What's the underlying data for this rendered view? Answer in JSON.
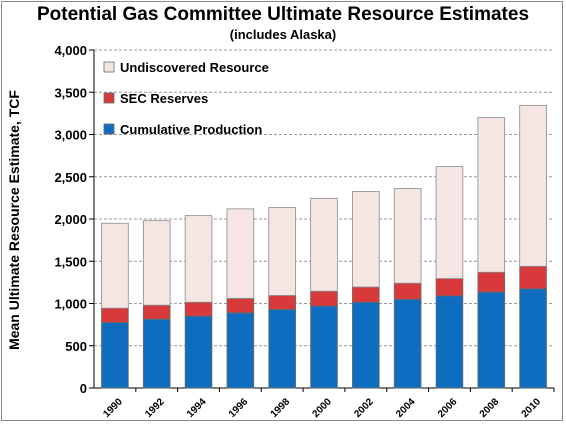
{
  "chart_data": {
    "type": "bar",
    "stacked": true,
    "title": "Potential Gas Committee Ultimate Resource Estimates",
    "subtitle": "(includes Alaska)",
    "xlabel": "",
    "ylabel": "Mean Ultimate Resource Estimate, TCF",
    "categories": [
      "1990",
      "1992",
      "1994",
      "1996",
      "1998",
      "2000",
      "2002",
      "2004",
      "2006",
      "2008",
      "2010"
    ],
    "ylim": [
      0,
      4000
    ],
    "yticks": [
      0,
      500,
      1000,
      1500,
      2000,
      2500,
      3000,
      3500,
      4000
    ],
    "ytick_labels": [
      "0",
      "500",
      "1,000",
      "1,500",
      "2,000",
      "2,500",
      "3,000",
      "3,500",
      "4,000"
    ],
    "grid": true,
    "legend_position": "top-left",
    "series": [
      {
        "name": "Cumulative Production",
        "color": "#0f6dc0",
        "values": [
          775,
          815,
          850,
          890,
          930,
          970,
          1015,
          1050,
          1090,
          1135,
          1175
        ]
      },
      {
        "name": "SEC Reserves",
        "color": "#d8393a",
        "values": [
          170,
          165,
          165,
          170,
          165,
          175,
          180,
          190,
          205,
          235,
          265
        ]
      },
      {
        "name": "Undiscovered Resource",
        "color": "#f5e6e4",
        "values": [
          1005,
          1000,
          1025,
          1060,
          1040,
          1100,
          1130,
          1120,
          1325,
          1830,
          1905
        ]
      }
    ],
    "legend_order": [
      "Undiscovered Resource",
      "SEC Reserves",
      "Cumulative Production"
    ]
  }
}
